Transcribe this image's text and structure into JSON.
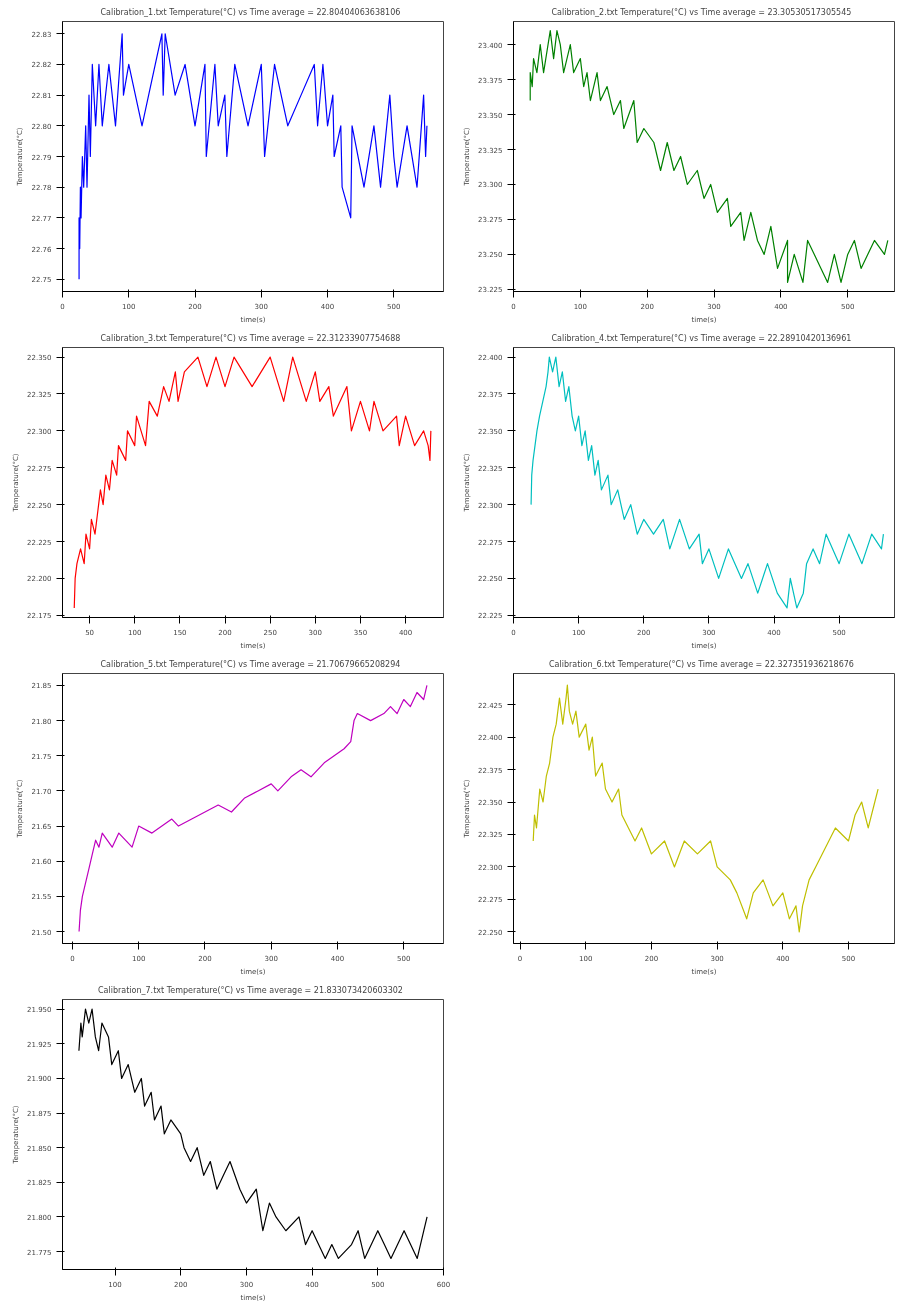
{
  "chart_data": [
    {
      "type": "line",
      "title": "Calibration_1.txt  Temperature(°C) vs Time  average = 22.80404063638106",
      "xlabel": "time(s)",
      "ylabel": "Temperature(°C)",
      "xlim": [
        0,
        575
      ],
      "xticks": [
        0,
        100,
        200,
        300,
        400,
        500
      ],
      "ylim": [
        22.746,
        22.834
      ],
      "yticks": [
        22.75,
        22.76,
        22.77,
        22.78,
        22.79,
        {
          "value": 22.8,
          "label": "22.80"
        },
        22.81,
        22.82,
        22.83
      ],
      "line_style": "solid",
      "series": [
        {
          "color": "#0000ff",
          "x": [
            25,
            25,
            26,
            27,
            28,
            30,
            32,
            35,
            37,
            40,
            42,
            45,
            50,
            55,
            60,
            70,
            80,
            90,
            92,
            100,
            120,
            140,
            150,
            152,
            155,
            170,
            185,
            200,
            215,
            217,
            230,
            235,
            245,
            248,
            260,
            280,
            300,
            305,
            320,
            340,
            360,
            380,
            385,
            393,
            400,
            408,
            410,
            420,
            422,
            435,
            437,
            455,
            470,
            480,
            494,
            500,
            505,
            520,
            535,
            545,
            548,
            550
          ],
          "values": [
            22.75,
            22.77,
            22.76,
            22.78,
            22.77,
            22.79,
            22.78,
            22.8,
            22.78,
            22.81,
            22.79,
            22.82,
            22.8,
            22.82,
            22.8,
            22.82,
            22.8,
            22.83,
            22.81,
            22.82,
            22.8,
            22.82,
            22.83,
            22.81,
            22.83,
            22.81,
            22.82,
            22.8,
            22.82,
            22.79,
            22.82,
            22.8,
            22.81,
            22.79,
            22.82,
            22.8,
            22.82,
            22.79,
            22.82,
            22.8,
            22.81,
            22.82,
            22.8,
            22.82,
            22.8,
            22.81,
            22.79,
            22.8,
            22.78,
            22.77,
            22.8,
            22.78,
            22.8,
            22.78,
            22.81,
            22.79,
            22.78,
            22.8,
            22.78,
            22.81,
            22.79,
            22.8
          ]
        }
      ]
    },
    {
      "type": "line",
      "title": "Calibration_2.txt  Temperature(°C) vs Time  average = 23.30530517305545",
      "xlabel": "time(s)",
      "ylabel": "Temperature(°C)",
      "xlim": [
        0,
        570
      ],
      "xticks": [
        0,
        100,
        200,
        300,
        400,
        500
      ],
      "ylim": [
        23.2235,
        23.4165
      ],
      "yticks": [
        {
          "value": 23.225,
          "label": "23.225"
        },
        {
          "value": 23.25,
          "label": "23.250"
        },
        {
          "value": 23.275,
          "label": "23.275"
        },
        {
          "value": 23.3,
          "label": "23.300"
        },
        {
          "value": 23.325,
          "label": "23.325"
        },
        {
          "value": 23.35,
          "label": "23.350"
        },
        {
          "value": 23.375,
          "label": "23.375"
        },
        {
          "value": 23.4,
          "label": "23.400"
        }
      ],
      "line_style": "solid",
      "series": [
        {
          "color": "#008000",
          "x": [
            25,
            25,
            28,
            30,
            35,
            40,
            45,
            55,
            60,
            65,
            70,
            75,
            85,
            90,
            100,
            105,
            110,
            115,
            125,
            130,
            140,
            150,
            160,
            165,
            180,
            185,
            195,
            210,
            220,
            230,
            240,
            250,
            260,
            275,
            285,
            295,
            305,
            320,
            325,
            340,
            345,
            355,
            365,
            375,
            385,
            395,
            410,
            410,
            420,
            433,
            440,
            460,
            470,
            480,
            490,
            500,
            510,
            520,
            540,
            555,
            560
          ],
          "values": [
            23.36,
            23.38,
            23.37,
            23.39,
            23.38,
            23.4,
            23.38,
            23.41,
            23.39,
            23.41,
            23.4,
            23.38,
            23.4,
            23.38,
            23.39,
            23.37,
            23.38,
            23.36,
            23.38,
            23.36,
            23.37,
            23.35,
            23.36,
            23.34,
            23.36,
            23.33,
            23.34,
            23.33,
            23.31,
            23.33,
            23.31,
            23.32,
            23.3,
            23.31,
            23.29,
            23.3,
            23.28,
            23.29,
            23.27,
            23.28,
            23.26,
            23.28,
            23.26,
            23.25,
            23.27,
            23.24,
            23.26,
            23.23,
            23.25,
            23.23,
            23.26,
            23.24,
            23.23,
            23.25,
            23.23,
            23.25,
            23.26,
            23.24,
            23.26,
            23.25,
            23.26
          ]
        }
      ]
    },
    {
      "type": "line",
      "title": "Calibration_3.txt  Temperature(°C) vs Time  average = 22.31233907754688",
      "xlabel": "time(s)",
      "ylabel": "Temperature(°C)",
      "xlim": [
        20,
        442
      ],
      "xticks": [
        50,
        100,
        150,
        200,
        250,
        300,
        350,
        400
      ],
      "ylim": [
        22.1735,
        22.3565
      ],
      "yticks": [
        {
          "value": 22.175,
          "label": "22.175"
        },
        {
          "value": 22.2,
          "label": "22.200"
        },
        {
          "value": 22.225,
          "label": "22.225"
        },
        {
          "value": 22.25,
          "label": "22.250"
        },
        {
          "value": 22.275,
          "label": "22.275"
        },
        {
          "value": 22.3,
          "label": "22.300"
        },
        {
          "value": 22.325,
          "label": "22.325"
        },
        {
          "value": 22.35,
          "label": "22.350"
        }
      ],
      "line_style": "solid",
      "series": [
        {
          "color": "#ff0000",
          "x": [
            33,
            34,
            36,
            40,
            44,
            46,
            50,
            52,
            56,
            60,
            62,
            65,
            68,
            72,
            75,
            80,
            82,
            90,
            92,
            100,
            102,
            112,
            116,
            125,
            132,
            138,
            145,
            148,
            155,
            170,
            180,
            190,
            200,
            210,
            230,
            250,
            265,
            275,
            290,
            300,
            305,
            315,
            320,
            335,
            340,
            350,
            360,
            365,
            375,
            390,
            393,
            400,
            410,
            420,
            425,
            427,
            428
          ],
          "values": [
            22.18,
            22.2,
            22.21,
            22.22,
            22.21,
            22.23,
            22.22,
            22.24,
            22.23,
            22.25,
            22.26,
            22.25,
            22.27,
            22.26,
            22.28,
            22.27,
            22.29,
            22.28,
            22.3,
            22.29,
            22.31,
            22.29,
            22.32,
            22.31,
            22.33,
            22.32,
            22.34,
            22.32,
            22.34,
            22.35,
            22.33,
            22.35,
            22.33,
            22.35,
            22.33,
            22.35,
            22.32,
            22.35,
            22.32,
            22.34,
            22.32,
            22.33,
            22.31,
            22.33,
            22.3,
            22.32,
            22.3,
            22.32,
            22.3,
            22.31,
            22.29,
            22.31,
            22.29,
            22.3,
            22.29,
            22.28,
            22.3
          ]
        }
      ]
    },
    {
      "type": "line",
      "title": "Calibration_4.txt  Temperature(°C) vs Time  average = 22.28910420136961",
      "xlabel": "time(s)",
      "ylabel": "Temperature(°C)",
      "xlim": [
        0,
        585
      ],
      "xticks": [
        0,
        100,
        200,
        300,
        400,
        500
      ],
      "ylim": [
        22.2235,
        22.4065
      ],
      "yticks": [
        {
          "value": 22.225,
          "label": "22.225"
        },
        {
          "value": 22.25,
          "label": "22.250"
        },
        {
          "value": 22.275,
          "label": "22.275"
        },
        {
          "value": 22.3,
          "label": "22.300"
        },
        {
          "value": 22.325,
          "label": "22.325"
        },
        {
          "value": 22.35,
          "label": "22.350"
        },
        {
          "value": 22.375,
          "label": "22.375"
        },
        {
          "value": 22.4,
          "label": "22.400"
        }
      ],
      "line_style": "solid",
      "series": [
        {
          "color": "#00bfbf",
          "x": [
            27,
            28,
            30,
            33,
            36,
            40,
            45,
            50,
            53,
            55,
            60,
            65,
            70,
            75,
            80,
            85,
            90,
            95,
            100,
            105,
            110,
            115,
            120,
            125,
            130,
            135,
            145,
            150,
            160,
            170,
            180,
            190,
            200,
            215,
            230,
            240,
            255,
            270,
            285,
            290,
            300,
            315,
            330,
            350,
            360,
            375,
            390,
            405,
            420,
            425,
            435,
            445,
            450,
            460,
            470,
            480,
            500,
            515,
            535,
            550,
            565,
            568
          ],
          "values": [
            22.3,
            22.32,
            22.33,
            22.34,
            22.35,
            22.36,
            22.37,
            22.38,
            22.39,
            22.4,
            22.39,
            22.4,
            22.38,
            22.39,
            22.37,
            22.38,
            22.36,
            22.35,
            22.36,
            22.34,
            22.35,
            22.33,
            22.34,
            22.32,
            22.33,
            22.31,
            22.32,
            22.3,
            22.31,
            22.29,
            22.3,
            22.28,
            22.29,
            22.28,
            22.29,
            22.27,
            22.29,
            22.27,
            22.28,
            22.26,
            22.27,
            22.25,
            22.27,
            22.25,
            22.26,
            22.24,
            22.26,
            22.24,
            22.23,
            22.25,
            22.23,
            22.24,
            22.26,
            22.27,
            22.26,
            22.28,
            22.26,
            22.28,
            22.26,
            22.28,
            22.27,
            22.28
          ]
        }
      ]
    },
    {
      "type": "line",
      "title": "Calibration_5.txt  Temperature(°C) vs Time  average = 21.70679665208294",
      "xlabel": "time(s)",
      "ylabel": "Temperature(°C)",
      "xlim": [
        -15,
        560
      ],
      "xticks": [
        0,
        100,
        200,
        300,
        400,
        500
      ],
      "ylim": [
        21.483,
        21.867
      ],
      "yticks": [
        {
          "value": 21.5,
          "label": "21.50"
        },
        21.55,
        {
          "value": 21.6,
          "label": "21.60"
        },
        21.65,
        {
          "value": 21.7,
          "label": "21.70"
        },
        21.75,
        {
          "value": 21.8,
          "label": "21.80"
        },
        21.85
      ],
      "line_style": "solid",
      "series": [
        {
          "color": "#bf00bf",
          "x": [
            10,
            12,
            15,
            20,
            25,
            30,
            35,
            40,
            45,
            60,
            70,
            90,
            100,
            120,
            150,
            160,
            180,
            200,
            220,
            240,
            260,
            280,
            300,
            310,
            330,
            345,
            360,
            380,
            395,
            410,
            420,
            425,
            430,
            450,
            470,
            480,
            490,
            500,
            510,
            520,
            530,
            535
          ],
          "values": [
            21.5,
            21.53,
            21.55,
            21.57,
            21.59,
            21.61,
            21.63,
            21.62,
            21.64,
            21.62,
            21.64,
            21.62,
            21.65,
            21.64,
            21.66,
            21.65,
            21.66,
            21.67,
            21.68,
            21.67,
            21.69,
            21.7,
            21.71,
            21.7,
            21.72,
            21.73,
            21.72,
            21.74,
            21.75,
            21.76,
            21.77,
            21.8,
            21.81,
            21.8,
            21.81,
            21.82,
            21.81,
            21.83,
            21.82,
            21.84,
            21.83,
            21.85
          ]
        }
      ]
    },
    {
      "type": "line",
      "title": "Calibration_6.txt  Temperature(°C) vs Time  average = 22.327351936218676",
      "xlabel": "time(s)",
      "ylabel": "Temperature(°C)",
      "xlim": [
        -10,
        570
      ],
      "xticks": [
        0,
        100,
        200,
        300,
        400,
        500
      ],
      "ylim": [
        22.241,
        22.449
      ],
      "yticks": [
        {
          "value": 22.25,
          "label": "22.250"
        },
        {
          "value": 22.275,
          "label": "22.275"
        },
        {
          "value": 22.3,
          "label": "22.300"
        },
        {
          "value": 22.325,
          "label": "22.325"
        },
        {
          "value": 22.35,
          "label": "22.350"
        },
        {
          "value": 22.375,
          "label": "22.375"
        },
        {
          "value": 22.4,
          "label": "22.400"
        },
        {
          "value": 22.425,
          "label": "22.425"
        }
      ],
      "line_style": "solid",
      "series": [
        {
          "color": "#bfbf00",
          "x": [
            20,
            22,
            25,
            30,
            35,
            40,
            45,
            50,
            55,
            60,
            65,
            70,
            72,
            75,
            80,
            85,
            90,
            100,
            105,
            110,
            115,
            125,
            130,
            140,
            150,
            155,
            165,
            175,
            185,
            200,
            220,
            235,
            250,
            270,
            290,
            300,
            320,
            330,
            345,
            355,
            370,
            385,
            400,
            410,
            420,
            425,
            430,
            440,
            450,
            460,
            470,
            480,
            500,
            510,
            520,
            530,
            540,
            545
          ],
          "values": [
            22.32,
            22.34,
            22.33,
            22.36,
            22.35,
            22.37,
            22.38,
            22.4,
            22.41,
            22.43,
            22.41,
            22.43,
            22.44,
            22.42,
            22.41,
            22.42,
            22.4,
            22.41,
            22.39,
            22.4,
            22.37,
            22.38,
            22.36,
            22.35,
            22.36,
            22.34,
            22.33,
            22.32,
            22.33,
            22.31,
            22.32,
            22.3,
            22.32,
            22.31,
            22.32,
            22.3,
            22.29,
            22.28,
            22.26,
            22.28,
            22.29,
            22.27,
            22.28,
            22.26,
            22.27,
            22.25,
            22.27,
            22.29,
            22.3,
            22.31,
            22.32,
            22.33,
            22.32,
            22.34,
            22.35,
            22.33,
            22.35,
            22.36
          ]
        }
      ]
    },
    {
      "type": "line",
      "title": "Calibration_7.txt  Temperature(°C) vs Time  average = 21.833073420603302",
      "xlabel": "time(s)",
      "ylabel": "Temperature(°C)",
      "xlim": [
        20,
        600
      ],
      "xticks": [
        100,
        200,
        300,
        400,
        500,
        600
      ],
      "ylim": [
        21.762,
        21.957
      ],
      "yticks": [
        {
          "value": 21.775,
          "label": "21.775"
        },
        {
          "value": 21.8,
          "label": "21.800"
        },
        {
          "value": 21.825,
          "label": "21.825"
        },
        {
          "value": 21.85,
          "label": "21.850"
        },
        {
          "value": 21.875,
          "label": "21.875"
        },
        {
          "value": 21.9,
          "label": "21.900"
        },
        {
          "value": 21.925,
          "label": "21.925"
        },
        {
          "value": 21.95,
          "label": "21.950"
        }
      ],
      "line_style": "solid",
      "series": [
        {
          "color": "#000000",
          "x": [
            45,
            48,
            50,
            55,
            60,
            65,
            70,
            75,
            80,
            90,
            95,
            105,
            110,
            120,
            130,
            140,
            145,
            155,
            160,
            170,
            175,
            185,
            200,
            205,
            215,
            225,
            235,
            245,
            255,
            265,
            275,
            290,
            300,
            315,
            325,
            335,
            345,
            360,
            380,
            390,
            400,
            420,
            430,
            440,
            460,
            470,
            480,
            500,
            510,
            520,
            540,
            560,
            570,
            575
          ],
          "values": [
            21.92,
            21.94,
            21.93,
            21.95,
            21.94,
            21.95,
            21.93,
            21.92,
            21.94,
            21.93,
            21.91,
            21.92,
            21.9,
            21.91,
            21.89,
            21.9,
            21.88,
            21.89,
            21.87,
            21.88,
            21.86,
            21.87,
            21.86,
            21.85,
            21.84,
            21.85,
            21.83,
            21.84,
            21.82,
            21.83,
            21.84,
            21.82,
            21.81,
            21.82,
            21.79,
            21.81,
            21.8,
            21.79,
            21.8,
            21.78,
            21.79,
            21.77,
            21.78,
            21.77,
            21.78,
            21.79,
            21.77,
            21.79,
            21.78,
            21.77,
            21.79,
            21.77,
            21.79,
            21.8
          ]
        }
      ]
    }
  ]
}
